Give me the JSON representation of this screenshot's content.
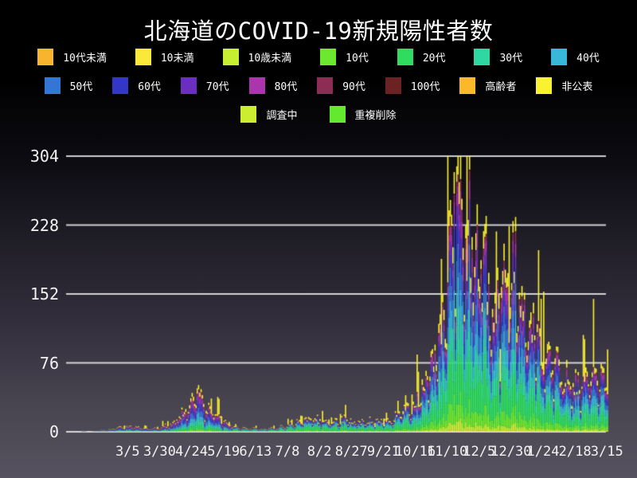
{
  "title": "北海道のCOVID-19新規陽性者数",
  "legend": {
    "rows": [
      [
        0,
        1,
        2,
        3,
        4,
        5,
        6
      ],
      [
        7,
        8,
        9,
        10,
        11,
        12,
        13,
        14
      ],
      [
        15,
        16
      ]
    ]
  },
  "chart_data": {
    "type": "bar",
    "stacked": true,
    "title": "北海道のCOVID-19新規陽性者数",
    "xlabel": "",
    "ylabel": "",
    "grid": "horizontal",
    "legend_position": "top",
    "ylim": [
      0,
      304
    ],
    "y_ticks": [
      0,
      76,
      152,
      228,
      304
    ],
    "x_tick_labels": [
      "3/5",
      "3/30",
      "4/24",
      "5/19",
      "6/13",
      "7/8",
      "8/2",
      "8/27",
      "9/21",
      "10/16",
      "11/10",
      "12/5",
      "12/30",
      "1/24",
      "2/18",
      "3/15"
    ],
    "x_tick_interval_days": 25,
    "series": [
      {
        "name": "10代未満",
        "color": "#F9B42D"
      },
      {
        "name": "10未満",
        "color": "#FBE83A"
      },
      {
        "name": "10歳未満",
        "color": "#C6EF34"
      },
      {
        "name": "10代",
        "color": "#6CE92F"
      },
      {
        "name": "20代",
        "color": "#30DC60"
      },
      {
        "name": "30代",
        "color": "#2FD8A2"
      },
      {
        "name": "40代",
        "color": "#38B7D8"
      },
      {
        "name": "50代",
        "color": "#3476D3"
      },
      {
        "name": "60代",
        "color": "#3237C8"
      },
      {
        "name": "70代",
        "color": "#6A2FC0"
      },
      {
        "name": "80代",
        "color": "#AA35AC"
      },
      {
        "name": "90代",
        "color": "#8C2D55"
      },
      {
        "name": "100代",
        "color": "#6B2222"
      },
      {
        "name": "高齢者",
        "color": "#FBB829"
      },
      {
        "name": "非公表",
        "color": "#FAF12F"
      },
      {
        "name": "調査中",
        "color": "#CCEE30"
      },
      {
        "name": "重複削除",
        "color": "#63E92E"
      }
    ],
    "days_total": 412,
    "first_tick_day_index": 36,
    "daily_total_anchors": [
      [
        0,
        1
      ],
      [
        6,
        0
      ],
      [
        12,
        1
      ],
      [
        18,
        2
      ],
      [
        24,
        3
      ],
      [
        31,
        6
      ],
      [
        36,
        6
      ],
      [
        42,
        5
      ],
      [
        50,
        3
      ],
      [
        58,
        4
      ],
      [
        64,
        6
      ],
      [
        70,
        9
      ],
      [
        76,
        16
      ],
      [
        82,
        28
      ],
      [
        86,
        38
      ],
      [
        90,
        42
      ],
      [
        94,
        32
      ],
      [
        99,
        26
      ],
      [
        104,
        20
      ],
      [
        111,
        12
      ],
      [
        117,
        7
      ],
      [
        124,
        4
      ],
      [
        130,
        3
      ],
      [
        136,
        4
      ],
      [
        143,
        3
      ],
      [
        150,
        4
      ],
      [
        156,
        6
      ],
      [
        161,
        8
      ],
      [
        168,
        11
      ],
      [
        175,
        14
      ],
      [
        182,
        15
      ],
      [
        186,
        13
      ],
      [
        192,
        10
      ],
      [
        199,
        12
      ],
      [
        205,
        14
      ],
      [
        211,
        12
      ],
      [
        218,
        10
      ],
      [
        225,
        13
      ],
      [
        231,
        14
      ],
      [
        236,
        12
      ],
      [
        242,
        15
      ],
      [
        248,
        20
      ],
      [
        255,
        26
      ],
      [
        261,
        36
      ],
      [
        266,
        45
      ],
      [
        271,
        60
      ],
      [
        276,
        85
      ],
      [
        280,
        110
      ],
      [
        284,
        160
      ],
      [
        288,
        215
      ],
      [
        292,
        285
      ],
      [
        296,
        262
      ],
      [
        300,
        242
      ],
      [
        304,
        232
      ],
      [
        308,
        222
      ],
      [
        311,
        212
      ],
      [
        315,
        188
      ],
      [
        319,
        168
      ],
      [
        323,
        150
      ],
      [
        327,
        146
      ],
      [
        331,
        162
      ],
      [
        334,
        186
      ],
      [
        337,
        200
      ],
      [
        340,
        178
      ],
      [
        344,
        152
      ],
      [
        348,
        132
      ],
      [
        352,
        116
      ],
      [
        357,
        104
      ],
      [
        361,
        94
      ],
      [
        365,
        84
      ],
      [
        369,
        78
      ],
      [
        373,
        70
      ],
      [
        377,
        64
      ],
      [
        381,
        58
      ],
      [
        386,
        54
      ],
      [
        390,
        50
      ],
      [
        394,
        52
      ],
      [
        398,
        60
      ],
      [
        402,
        66
      ],
      [
        406,
        58
      ],
      [
        411,
        62
      ]
    ],
    "composition_profiles": {
      "spring": [
        0,
        0.005,
        0.02,
        0.04,
        0.1,
        0.09,
        0.11,
        0.12,
        0.11,
        0.12,
        0.12,
        0.06,
        0.01,
        0,
        0.105,
        0,
        0
      ],
      "summer": [
        0,
        0.005,
        0.03,
        0.08,
        0.24,
        0.15,
        0.12,
        0.1,
        0.07,
        0.05,
        0.04,
        0.02,
        0.003,
        0,
        0.1,
        0,
        0
      ],
      "winter": [
        0,
        0.006,
        0.03,
        0.08,
        0.19,
        0.13,
        0.12,
        0.12,
        0.08,
        0.075,
        0.065,
        0.035,
        0.004,
        0,
        0.075,
        0,
        0
      ]
    },
    "profile_breakpoints": [
      {
        "until_day": 118,
        "profile": "spring"
      },
      {
        "until_day": 256,
        "profile": "summer"
      },
      {
        "until_day": 412,
        "profile": "winter"
      }
    ]
  }
}
